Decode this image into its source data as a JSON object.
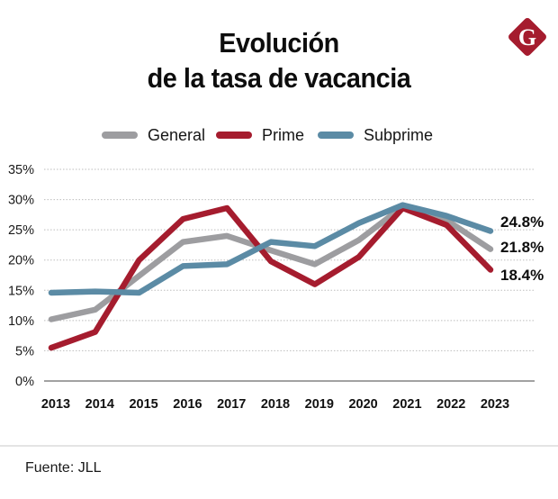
{
  "header": {
    "title_line1": "Evolución",
    "title_line2": "de la tasa de vacancia",
    "logo_letter": "G",
    "logo_color": "#a51c2e"
  },
  "legend": [
    {
      "label": "General",
      "color": "#9d9da0"
    },
    {
      "label": "Prime",
      "color": "#a51c2e"
    },
    {
      "label": "Subprime",
      "color": "#5b8ba5"
    }
  ],
  "footer": {
    "source": "Fuente: JLL"
  },
  "chart_data": {
    "type": "line",
    "title": "Evolución de la tasa de vacancia",
    "xlabel": "",
    "ylabel": "",
    "x": [
      "2013",
      "2014",
      "2015",
      "2016",
      "2017",
      "2018",
      "2019",
      "2020",
      "2021",
      "2022",
      "2023"
    ],
    "yticks": [
      "0%",
      "5%",
      "10%",
      "15%",
      "20%",
      "25%",
      "30%",
      "35%"
    ],
    "ylim": [
      0,
      35
    ],
    "grid": true,
    "legend_position": "top-center",
    "series": [
      {
        "name": "General",
        "color": "#9d9da0",
        "values": [
          10.2,
          11.8,
          17.4,
          23.0,
          24.0,
          21.6,
          19.3,
          23.3,
          28.8,
          26.6,
          21.8
        ],
        "end_label": "21.8%"
      },
      {
        "name": "Prime",
        "color": "#a51c2e",
        "values": [
          5.5,
          8.1,
          20.0,
          26.8,
          28.6,
          19.8,
          16.0,
          20.5,
          28.6,
          25.8,
          18.4
        ],
        "end_label": "18.4%"
      },
      {
        "name": "Subprime",
        "color": "#5b8ba5",
        "values": [
          14.6,
          14.8,
          14.6,
          19.0,
          19.3,
          23.0,
          22.3,
          26.1,
          29.1,
          27.3,
          24.8
        ],
        "end_label": "24.8%"
      }
    ]
  }
}
